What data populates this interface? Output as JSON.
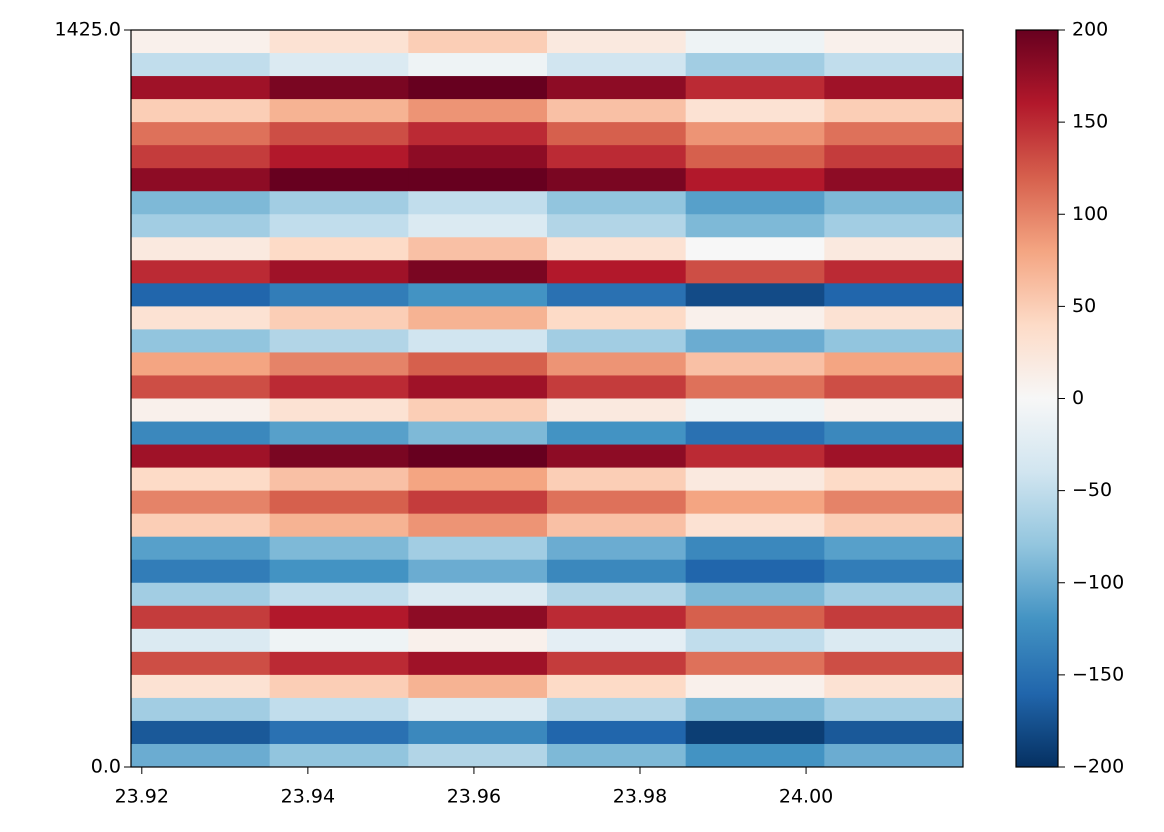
{
  "chart_data": {
    "type": "heatmap",
    "xlim": [
      23.9187,
      24.0189
    ],
    "ylim": [
      0,
      1425
    ],
    "xticks": [
      23.92,
      23.94,
      23.96,
      23.98,
      {
        "value": 24,
        "label": "24.00"
      }
    ],
    "yticks": [
      {
        "value": 0,
        "label": "0.0"
      },
      {
        "value": 1425,
        "label": "1425.0"
      }
    ],
    "clim": [
      -200,
      200
    ],
    "cticks": [
      {
        "value": -200,
        "label": "−200"
      },
      {
        "value": -150,
        "label": "−150"
      },
      {
        "value": -100,
        "label": "−100"
      },
      {
        "value": -50,
        "label": "−50"
      },
      0,
      50,
      100,
      150,
      200
    ],
    "colormap": [
      "#053061",
      "#2166ac",
      "#4393c3",
      "#92c5de",
      "#d1e5f0",
      "#f7f7f7",
      "#fddbc7",
      "#f4a582",
      "#d6604d",
      "#b2182b",
      "#67001f"
    ],
    "z": [
      [
        10,
        30,
        50,
        20,
        -10,
        10
      ],
      [
        -50,
        -30,
        -10,
        -40,
        -70,
        -50
      ],
      [
        170,
        190,
        200,
        180,
        150,
        170
      ],
      [
        50,
        70,
        90,
        60,
        30,
        50
      ],
      [
        110,
        130,
        150,
        120,
        90,
        110
      ],
      [
        140,
        160,
        180,
        150,
        120,
        140
      ],
      [
        180,
        200,
        200,
        190,
        160,
        180
      ],
      [
        -90,
        -70,
        -50,
        -80,
        -110,
        -90
      ],
      [
        -70,
        -50,
        -30,
        -60,
        -90,
        -70
      ],
      [
        20,
        40,
        60,
        30,
        0,
        20
      ],
      [
        150,
        170,
        190,
        160,
        130,
        150
      ],
      [
        -160,
        -140,
        -120,
        -150,
        -180,
        -160
      ],
      [
        30,
        50,
        70,
        40,
        10,
        30
      ],
      [
        -80,
        -60,
        -40,
        -70,
        -100,
        -80
      ],
      [
        80,
        100,
        120,
        90,
        60,
        80
      ],
      [
        130,
        150,
        170,
        140,
        110,
        130
      ],
      [
        10,
        30,
        50,
        20,
        -10,
        10
      ],
      [
        -130,
        -110,
        -90,
        -120,
        -150,
        -130
      ],
      [
        170,
        190,
        200,
        180,
        150,
        170
      ],
      [
        40,
        60,
        80,
        50,
        20,
        40
      ],
      [
        100,
        120,
        140,
        110,
        80,
        100
      ],
      [
        50,
        70,
        90,
        60,
        30,
        50
      ],
      [
        -110,
        -90,
        -70,
        -100,
        -130,
        -110
      ],
      [
        -140,
        -120,
        -100,
        -130,
        -160,
        -140
      ],
      [
        -70,
        -50,
        -30,
        -60,
        -90,
        -70
      ],
      [
        140,
        160,
        180,
        150,
        120,
        140
      ],
      [
        -30,
        -10,
        10,
        -20,
        -50,
        -30
      ],
      [
        130,
        150,
        170,
        140,
        110,
        130
      ],
      [
        30,
        50,
        70,
        40,
        10,
        30
      ],
      [
        -70,
        -50,
        -30,
        -60,
        -90,
        -70
      ],
      [
        -170,
        -150,
        -130,
        -160,
        -190,
        -170
      ],
      [
        -100,
        -80,
        -60,
        -90,
        -120,
        -100
      ]
    ]
  }
}
